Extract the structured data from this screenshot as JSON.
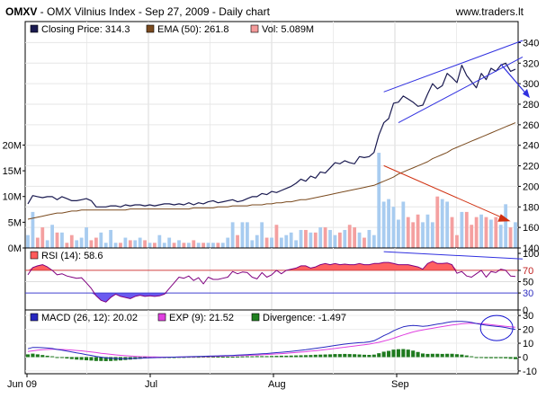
{
  "header": {
    "symbol": "OMXV",
    "title": " - OMX Vilnius Index - Sep 27, 2009 - Daily chart",
    "site": "www.traders.lt"
  },
  "chart_data": [
    {
      "type": "line",
      "panel": "price",
      "legend": [
        {
          "label": "Closing Price: 314.3",
          "color": "#1a1a50"
        },
        {
          "label": "EMA (50): 261.8",
          "color": "#7a4a1e"
        },
        {
          "label": "Vol: 5.089M",
          "color": "#f49a9a"
        }
      ],
      "x_labels": [
        "Jun 09",
        "Jul",
        "Aug",
        "Sep"
      ],
      "y_right_ticks": [
        "140",
        "160",
        "180",
        "200",
        "220",
        "240",
        "260",
        "280",
        "300",
        "320",
        "340"
      ],
      "y_left_ticks": [
        "0M",
        "5M",
        "10M",
        "15M",
        "20M"
      ],
      "ylim": [
        140,
        350
      ],
      "vol_lim": [
        0,
        22
      ],
      "close": [
        183,
        191,
        190,
        189,
        190,
        190,
        187,
        190,
        188,
        186,
        186,
        187,
        188,
        186,
        180,
        180,
        180,
        181,
        181,
        180,
        182,
        181,
        182,
        182,
        181,
        182,
        181,
        182,
        183,
        183,
        182,
        183,
        182,
        184,
        182,
        184,
        183,
        185,
        186,
        184,
        185,
        186,
        187,
        185,
        186,
        188,
        190,
        190,
        193,
        192,
        195,
        194,
        196,
        198,
        200,
        203,
        207,
        205,
        210,
        208,
        214,
        213,
        218,
        223,
        222,
        225,
        223,
        222,
        229,
        228,
        229,
        233,
        250,
        262,
        266,
        281,
        282,
        288,
        285,
        282,
        278,
        279,
        290,
        300,
        295,
        298,
        310,
        306,
        301,
        318,
        308,
        302,
        296,
        310,
        304,
        315,
        312,
        318,
        320,
        312,
        314
      ],
      "ema": [
        168,
        169,
        170,
        171,
        172,
        173,
        174,
        174,
        175,
        176,
        176,
        177,
        177,
        177,
        177,
        177,
        177,
        177,
        177,
        177,
        177,
        178,
        178,
        178,
        178,
        178,
        178,
        178,
        178,
        178,
        178,
        178,
        178,
        178,
        179,
        179,
        179,
        179,
        179,
        180,
        180,
        180,
        181,
        181,
        181,
        181,
        182,
        182,
        182,
        183,
        183,
        184,
        184,
        185,
        185,
        186,
        187,
        187,
        188,
        189,
        190,
        191,
        192,
        193,
        194,
        195,
        196,
        197,
        198,
        199,
        200,
        201,
        203,
        205,
        207,
        209,
        212,
        214,
        216,
        218,
        220,
        222,
        224,
        227,
        229,
        231,
        233,
        236,
        238,
        240,
        242,
        244,
        246,
        248,
        250,
        252,
        254,
        256,
        258,
        260,
        262
      ],
      "volume": [
        2.5,
        7,
        2,
        4,
        1.5,
        4.5,
        3,
        3,
        1,
        2.5,
        1.5,
        2,
        4,
        1.5,
        2,
        3,
        1,
        3.5,
        1,
        1,
        2,
        1.5,
        1.5,
        2,
        1.5,
        1,
        1,
        2.5,
        1,
        2,
        1,
        1.5,
        1,
        1,
        1.5,
        1,
        1,
        1,
        1,
        1,
        1,
        2,
        5,
        2.5,
        5,
        5,
        1.5,
        2.5,
        5,
        2,
        2,
        4.5,
        2,
        2.5,
        3,
        1.5,
        3.5,
        3.5,
        3,
        3,
        4,
        4,
        3.5,
        2.5,
        3,
        3.5,
        4.5,
        4,
        3,
        2,
        3.5,
        2.5,
        18.5,
        9,
        9.5,
        8,
        5.5,
        9,
        6,
        5,
        6.5,
        5,
        6.5,
        5,
        10,
        9.5,
        9,
        6,
        2.5,
        7,
        7,
        4.5,
        6,
        6.5,
        6,
        5.5,
        6,
        4.5,
        8.5,
        4,
        5
      ],
      "annotations": [
        "trend channel lines",
        "downward arrow",
        "volume trend line"
      ]
    },
    {
      "type": "line",
      "panel": "rsi",
      "legend": [
        {
          "label": "RSI (14): 58.6",
          "color": "#ff5a5a"
        }
      ],
      "y_ticks": [
        "0",
        "30",
        "50",
        "70",
        "100"
      ],
      "levels": {
        "upper": 70,
        "lower": 30
      },
      "ylim": [
        0,
        100
      ],
      "rsi": [
        62,
        75,
        78,
        80,
        76,
        70,
        62,
        64,
        60,
        58,
        56,
        57,
        48,
        38,
        25,
        17,
        14,
        22,
        28,
        24,
        22,
        20,
        24,
        26,
        24,
        25,
        24,
        25,
        28,
        38,
        48,
        58,
        56,
        60,
        52,
        57,
        46,
        58,
        54,
        54,
        56,
        58,
        68,
        64,
        67,
        66,
        58,
        55,
        66,
        58,
        62,
        70,
        64,
        70,
        72,
        74,
        78,
        78,
        74,
        76,
        80,
        82,
        80,
        82,
        80,
        81,
        80,
        80,
        82,
        80,
        80,
        82,
        82,
        84,
        84,
        82,
        80,
        80,
        80,
        78,
        76,
        72,
        82,
        86,
        82,
        82,
        83,
        80,
        65,
        68,
        60,
        58,
        64,
        70,
        58,
        68,
        66,
        72,
        70,
        60,
        59
      ],
      "annotations": [
        "RSI trend line"
      ]
    },
    {
      "type": "line",
      "panel": "macd",
      "legend": [
        {
          "label": "MACD (26, 12): 20.02",
          "color": "#2828c0"
        },
        {
          "label": "EXP (9): 21.52",
          "color": "#e040e0"
        },
        {
          "label": "Divergence: -1.497",
          "color": "#208020"
        }
      ],
      "y_ticks": [
        "-10",
        "0",
        "10",
        "20",
        "30"
      ],
      "ylim": [
        -12,
        34
      ],
      "macd": [
        6,
        7,
        7,
        6.8,
        6.5,
        6.2,
        5.5,
        5,
        4.3,
        3.7,
        3,
        2.5,
        1.8,
        1.2,
        0.5,
        0,
        -0.5,
        -0.8,
        -1,
        -1.1,
        -1.1,
        -1,
        -0.9,
        -0.8,
        -0.6,
        -0.5,
        -0.4,
        -0.3,
        -0.2,
        -0.1,
        0,
        0.1,
        0.2,
        0.3,
        0.4,
        0.5,
        0.6,
        0.7,
        0.8,
        0.9,
        1,
        1.1,
        1.2,
        1.4,
        1.6,
        1.8,
        2,
        2.2,
        2.4,
        2.6,
        2.9,
        3.2,
        3.5,
        3.8,
        4.1,
        4.5,
        4.9,
        5.3,
        5.8,
        6.3,
        6.8,
        7.3,
        7.8,
        8.4,
        8.9,
        9.4,
        9.8,
        10.1,
        10.4,
        10.6,
        11,
        11.8,
        13.5,
        15.5,
        17,
        19,
        20.5,
        21.8,
        22.5,
        22.8,
        22.6,
        22.2,
        22.5,
        23.2,
        23.8,
        24.3,
        25,
        25.6,
        25.7,
        25.8,
        25.5,
        25,
        24.2,
        23.6,
        23,
        22.6,
        22.2,
        21.8,
        21.3,
        20.6,
        20
      ],
      "exp": [
        4,
        4.5,
        5,
        5.3,
        5.5,
        5.6,
        5.6,
        5.5,
        5.3,
        5.1,
        4.8,
        4.5,
        4.1,
        3.7,
        3.3,
        2.8,
        2.4,
        2,
        1.6,
        1.3,
        1,
        0.8,
        0.6,
        0.4,
        0.3,
        0.2,
        0.1,
        0,
        0,
        0,
        0,
        0,
        0.1,
        0.1,
        0.2,
        0.3,
        0.3,
        0.4,
        0.5,
        0.6,
        0.7,
        0.8,
        0.9,
        1,
        1.1,
        1.2,
        1.4,
        1.5,
        1.7,
        1.9,
        2.1,
        2.3,
        2.5,
        2.8,
        3,
        3.3,
        3.6,
        3.9,
        4.3,
        4.6,
        5,
        5.4,
        5.8,
        6.2,
        6.7,
        7.1,
        7.6,
        8,
        8.5,
        8.9,
        9.4,
        10,
        10.7,
        11.6,
        12.5,
        13.6,
        14.8,
        16,
        17.1,
        18.1,
        18.9,
        19.6,
        20.2,
        20.8,
        21.4,
        22,
        22.6,
        23.2,
        23.6,
        24,
        24.3,
        24.4,
        24.3,
        24.1,
        23.8,
        23.4,
        23,
        22.6,
        22.2,
        21.8,
        21.5
      ],
      "divergence": [
        2,
        2.5,
        2,
        1.5,
        1,
        0.6,
        -0.1,
        -0.5,
        -1,
        -1.4,
        -1.8,
        -2,
        -2.3,
        -2.5,
        -2.8,
        -2.8,
        -2.9,
        -2.8,
        -2.6,
        -2.4,
        -2.1,
        -1.8,
        -1.5,
        -1.2,
        -0.9,
        -0.7,
        -0.5,
        -0.3,
        -0.2,
        -0.1,
        0,
        0.1,
        0.1,
        0.2,
        0.2,
        0.2,
        0.3,
        0.3,
        0.3,
        0.3,
        0.3,
        0.3,
        0.3,
        0.4,
        0.5,
        0.6,
        0.6,
        0.7,
        0.7,
        0.7,
        0.8,
        0.9,
        1,
        1,
        1.1,
        1.2,
        1.3,
        1.4,
        1.5,
        1.7,
        1.8,
        1.9,
        2,
        2.2,
        2.2,
        2.3,
        2.2,
        2.1,
        1.9,
        1.7,
        1.6,
        1.8,
        2.8,
        3.9,
        4.5,
        5.4,
        5.7,
        5.8,
        5.4,
        4.7,
        3.7,
        2.6,
        2.3,
        2.4,
        2.4,
        2.3,
        2.4,
        2.4,
        2.1,
        1.8,
        1.2,
        0.6,
        -0.1,
        -0.5,
        -0.8,
        -0.8,
        -0.8,
        -0.8,
        -0.9,
        -1.2,
        -1.5
      ],
      "annotations": [
        "circle highlight on crossover"
      ]
    }
  ]
}
